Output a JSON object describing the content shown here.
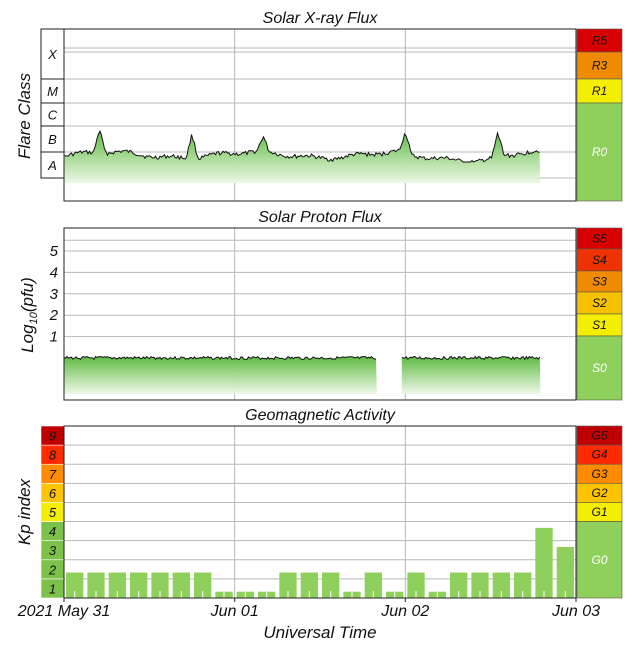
{
  "colors": {
    "grid": "#b8b8b8",
    "frame": "#222222",
    "flux_top": "#57b83a",
    "flux_bottom": "#eef8e6",
    "trace": "#111111",
    "kp_bar": "#8fd05c",
    "scale_red": "#d80000",
    "scale_redorange": "#ee3300",
    "scale_orange": "#f08a00",
    "scale_amber": "#f6c200",
    "scale_yellow": "#f4ee00",
    "scale_green": "#8fd05c",
    "kp_dark_red": "#c00000",
    "kp_red": "#ff2a00",
    "kp_orange": "#ff8c00",
    "kp_amber": "#ffc400",
    "kp_yellow": "#f4ee00",
    "kp_green": "#7cc24a"
  },
  "chart_data": [
    {
      "type": "area",
      "title": "Solar X-ray Flux",
      "ylabel": "Flare Class",
      "x_range": [
        "2021-05-31T00:00",
        "2021-06-03T00:00"
      ],
      "data_end": "2021-06-02T19:00",
      "y_scale": "log",
      "flare_classes": [
        "X",
        "M",
        "C",
        "B",
        "A"
      ],
      "radio_blackout_scale": [
        "R5",
        "R3",
        "R1",
        "R0"
      ],
      "baseline_class": "A",
      "spikes": [
        {
          "time": "2021-05-31T05:00",
          "class": "B"
        },
        {
          "time": "2021-05-31T18:00",
          "class": "B"
        },
        {
          "time": "2021-06-01T04:00",
          "class": "B"
        },
        {
          "time": "2021-06-02T00:00",
          "class": "B"
        },
        {
          "time": "2021-06-02T13:00",
          "class": "B"
        }
      ]
    },
    {
      "type": "area",
      "title": "Solar Proton Flux",
      "ylabel": "Log10(pfu)",
      "ylabel_main": "Log",
      "ylabel_sub": "10",
      "ylabel_unit": "(pfu)",
      "yticks": [
        "1",
        "2",
        "3",
        "4",
        "5"
      ],
      "ylim": [
        -1,
        6
      ],
      "x_range": [
        "2021-05-31T00:00",
        "2021-06-03T00:00"
      ],
      "data_end": "2021-06-02T19:00",
      "baseline_log_pfu": 0,
      "gap": [
        "2021-06-01T20:00",
        "2021-06-01T23:30"
      ],
      "radiation_storm_scale": [
        "S5",
        "S4",
        "S3",
        "S2",
        "S1",
        "S0"
      ]
    },
    {
      "type": "bar",
      "title": "Geomagnetic Activity",
      "ylabel": "Kp index",
      "xlabel": "Universal Time",
      "ylim": [
        0,
        9
      ],
      "kp_ticks": [
        "1",
        "2",
        "3",
        "4",
        "5",
        "6",
        "7",
        "8",
        "9"
      ],
      "geomagnetic_storm_scale": [
        "G5",
        "G4",
        "G3",
        "G2",
        "G1",
        "G0"
      ],
      "x_ticks": [
        "2021 May 31",
        "Jun 01",
        "Jun 02",
        "Jun 03"
      ],
      "interval_hours": 3,
      "start": "2021-05-31T00:00",
      "kp_values": [
        1.33,
        1.33,
        1.33,
        1.33,
        1.33,
        1.33,
        1.33,
        0.33,
        0.33,
        0.33,
        1.33,
        1.33,
        1.33,
        0.33,
        1.33,
        0.33,
        1.33,
        0.33,
        1.33,
        1.33,
        1.33,
        1.33,
        3.67,
        2.67
      ]
    }
  ]
}
